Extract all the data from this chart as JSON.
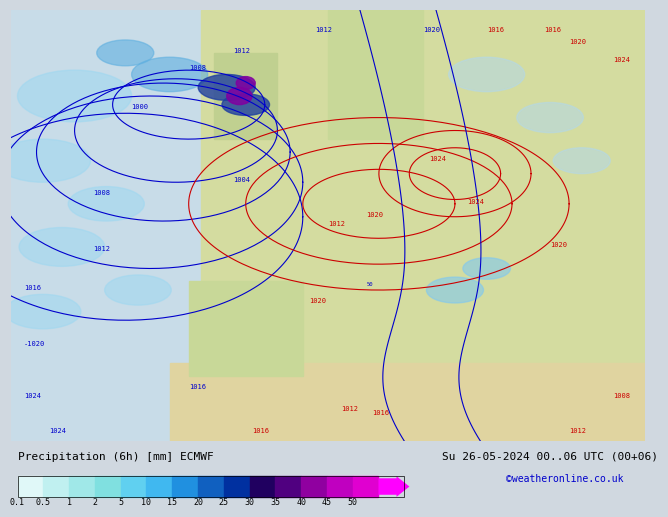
{
  "title_left": "Precipitation (6h) [mm] ECMWF",
  "title_right": "Su 26-05-2024 00..06 UTC (00+06)",
  "credit": "©weatheronline.co.uk",
  "colorbar_labels": [
    "0.1",
    "0.5",
    "1",
    "2",
    "5",
    "10",
    "15",
    "20",
    "25",
    "30",
    "35",
    "40",
    "45",
    "50"
  ],
  "colorbar_colors": [
    "#e0f8f8",
    "#c0f0f0",
    "#a0e8e8",
    "#80e0e0",
    "#60d0f0",
    "#40b8f0",
    "#2090e0",
    "#1060c0",
    "#0030a0",
    "#200060",
    "#500080",
    "#9000a0",
    "#c000c0",
    "#e000d0",
    "#ff00ff"
  ],
  "map_bg": "#f0f0e0",
  "land_color": "#c8d8a0",
  "sea_color": "#d0e8f0",
  "figure_bg": "#d0d8e0",
  "label_fontsize": 8,
  "title_fontsize": 8,
  "credit_color": "#0000cc",
  "credit_fontsize": 7
}
